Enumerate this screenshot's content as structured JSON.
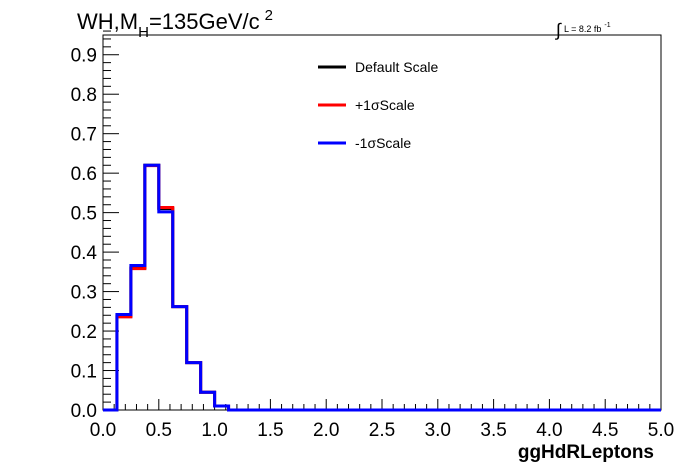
{
  "chart_data": {
    "type": "line",
    "style": "step-histogram",
    "title_main": "WH,M",
    "title_sub": "H",
    "title_rest": "=135GeV/c",
    "title_sup": "2",
    "luminosity": {
      "integral_symbol": "∫",
      "text": "L = 8.2 fb",
      "sup": "-1"
    },
    "xlabel": "ggHdRLeptons",
    "ylabel": "",
    "xlim": [
      0.0,
      5.0
    ],
    "ylim": [
      0.0,
      0.95
    ],
    "x_ticks": [
      "0.0",
      "0.5",
      "1.0",
      "1.5",
      "2.0",
      "2.5",
      "3.0",
      "3.5",
      "4.0",
      "4.5",
      "5.0"
    ],
    "y_ticks": [
      "0.0",
      "0.1",
      "0.2",
      "0.3",
      "0.4",
      "0.5",
      "0.6",
      "0.7",
      "0.8",
      "0.9"
    ],
    "bin_edges": [
      0.0,
      0.125,
      0.25,
      0.375,
      0.5,
      0.625,
      0.75,
      0.875,
      1.0,
      1.125,
      1.25,
      1.375,
      1.5,
      1.625,
      1.75,
      1.875,
      2.0,
      2.125,
      2.25,
      2.375,
      2.5,
      2.625,
      2.75,
      2.875,
      3.0,
      3.125,
      3.25,
      3.375,
      3.5,
      3.625,
      3.75,
      3.875,
      4.0,
      4.125,
      4.25,
      4.375,
      4.5,
      4.625,
      4.75,
      4.875,
      5.0
    ],
    "series": [
      {
        "name": "Default Scale",
        "color": "#000000",
        "values": [
          0,
          0.238,
          0.36,
          0.62,
          0.51,
          0.262,
          0.12,
          0.045,
          0.01,
          0,
          0,
          0,
          0,
          0,
          0,
          0,
          0,
          0,
          0,
          0,
          0,
          0,
          0,
          0,
          0,
          0,
          0,
          0,
          0,
          0,
          0,
          0,
          0,
          0,
          0,
          0,
          0,
          0,
          0,
          0
        ]
      },
      {
        "name": "+1σScale",
        "color": "#ff0000",
        "values": [
          0,
          0.236,
          0.358,
          0.619,
          0.513,
          0.262,
          0.12,
          0.045,
          0.01,
          0,
          0,
          0,
          0,
          0,
          0,
          0,
          0,
          0,
          0,
          0,
          0,
          0,
          0,
          0,
          0,
          0,
          0,
          0,
          0,
          0,
          0,
          0,
          0,
          0,
          0,
          0,
          0,
          0,
          0,
          0
        ]
      },
      {
        "name": "-1σScale",
        "color": "#0000ff",
        "values": [
          0,
          0.242,
          0.366,
          0.62,
          0.502,
          0.262,
          0.12,
          0.045,
          0.01,
          0,
          0,
          0,
          0,
          0,
          0,
          0,
          0,
          0,
          0,
          0,
          0,
          0,
          0,
          0,
          0,
          0,
          0,
          0,
          0,
          0,
          0,
          0,
          0,
          0,
          0,
          0,
          0,
          0,
          0,
          0
        ]
      }
    ],
    "legend_position": "top-center",
    "grid": false
  }
}
